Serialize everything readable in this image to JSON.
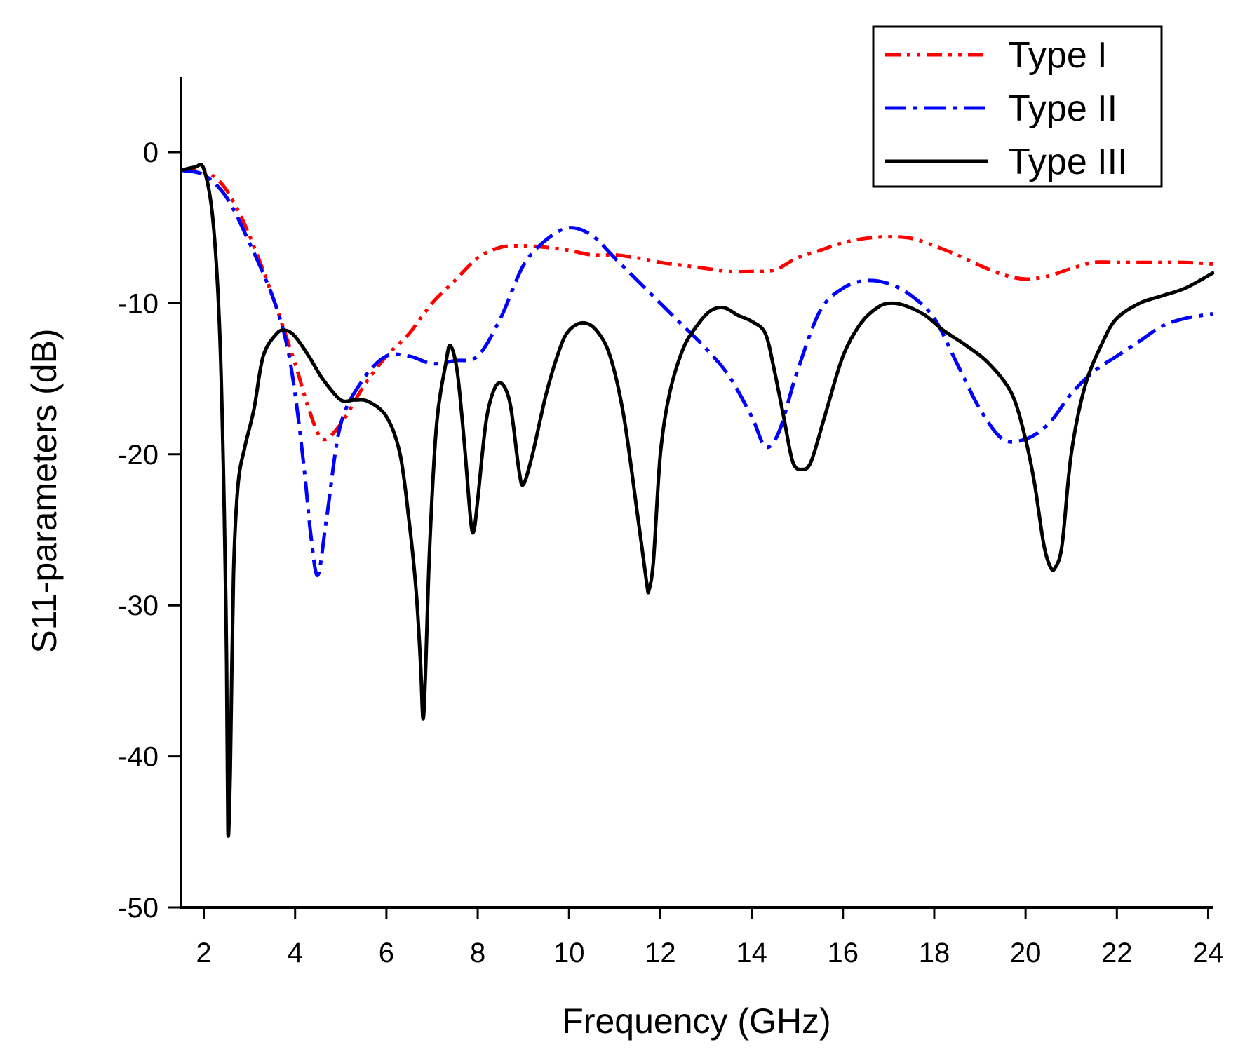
{
  "chart_data": {
    "type": "line",
    "title": "",
    "xlabel": "Frequency (GHz)",
    "ylabel": "S11-parameters (dB)",
    "xlim": [
      1.5,
      24.1
    ],
    "ylim": [
      -50,
      5
    ],
    "x_ticks": [
      2,
      4,
      6,
      8,
      10,
      12,
      14,
      16,
      18,
      20,
      22,
      24
    ],
    "y_ticks": [
      0,
      -10,
      -20,
      -30,
      -40,
      -50
    ],
    "x_tick_labels": [
      "2",
      "4",
      "6",
      "8",
      "10",
      "12",
      "14",
      "16",
      "18",
      "20",
      "22",
      "24"
    ],
    "y_tick_labels": [
      "0",
      "-10",
      "-20",
      "-30",
      "-40",
      "-50"
    ],
    "grid": false,
    "legend_position": "top-right",
    "series": [
      {
        "name": "Type I",
        "color": "#ff0000",
        "dash": "dash-dot-dot",
        "x": [
          1.5,
          2.0,
          2.3,
          2.6,
          3.0,
          3.5,
          4.0,
          4.3,
          4.6,
          5.0,
          5.5,
          6.0,
          6.5,
          7.0,
          7.5,
          8.0,
          8.5,
          9.0,
          9.5,
          10.0,
          10.5,
          11.0,
          11.5,
          12.0,
          12.5,
          13.0,
          13.5,
          14.0,
          14.5,
          15.0,
          15.5,
          16.0,
          16.5,
          17.0,
          17.5,
          18.0,
          18.5,
          19.0,
          19.5,
          20.0,
          20.5,
          21.0,
          21.5,
          22.0,
          22.5,
          23.0,
          23.5,
          24.1
        ],
        "y": [
          -1.2,
          -1.3,
          -1.8,
          -3.0,
          -5.5,
          -9.5,
          -14.0,
          -17.0,
          -19.0,
          -18.0,
          -15.5,
          -13.5,
          -12.0,
          -10.0,
          -8.5,
          -7.0,
          -6.3,
          -6.2,
          -6.3,
          -6.5,
          -6.8,
          -6.8,
          -7.0,
          -7.3,
          -7.5,
          -7.7,
          -7.9,
          -7.9,
          -7.8,
          -7.0,
          -6.5,
          -6.0,
          -5.7,
          -5.6,
          -5.7,
          -6.2,
          -6.8,
          -7.5,
          -8.1,
          -8.4,
          -8.2,
          -7.7,
          -7.3,
          -7.3,
          -7.3,
          -7.3,
          -7.3,
          -7.4
        ]
      },
      {
        "name": "Type II",
        "color": "#0000ff",
        "dash": "dash-dot",
        "x": [
          1.5,
          2.0,
          2.5,
          3.0,
          3.5,
          3.8,
          4.0,
          4.2,
          4.35,
          4.5,
          4.7,
          5.0,
          5.5,
          6.0,
          6.5,
          7.0,
          7.5,
          8.0,
          8.5,
          9.0,
          9.5,
          10.0,
          10.5,
          11.0,
          11.5,
          12.0,
          12.5,
          13.0,
          13.5,
          14.0,
          14.3,
          14.6,
          15.0,
          15.5,
          16.0,
          16.5,
          17.0,
          17.5,
          18.0,
          18.5,
          19.0,
          19.5,
          20.0,
          20.5,
          21.0,
          21.5,
          22.0,
          22.5,
          23.0,
          23.5,
          24.1
        ],
        "y": [
          -1.2,
          -1.5,
          -3.0,
          -6.0,
          -9.5,
          -12.5,
          -16.0,
          -21.0,
          -25.5,
          -28.0,
          -24.0,
          -18.0,
          -15.0,
          -13.5,
          -13.5,
          -14.0,
          -13.8,
          -13.5,
          -11.0,
          -7.5,
          -5.8,
          -5.0,
          -5.5,
          -7.0,
          -8.5,
          -10.0,
          -11.5,
          -13.0,
          -14.8,
          -17.5,
          -19.5,
          -18.5,
          -14.5,
          -10.5,
          -9.0,
          -8.5,
          -8.7,
          -9.5,
          -11.0,
          -14.0,
          -17.0,
          -19.0,
          -19.0,
          -18.0,
          -16.0,
          -14.5,
          -13.5,
          -12.5,
          -11.5,
          -11.0,
          -10.7
        ]
      },
      {
        "name": "Type III",
        "color": "#000000",
        "dash": "solid",
        "x": [
          1.5,
          1.8,
          2.0,
          2.2,
          2.35,
          2.45,
          2.5,
          2.53,
          2.58,
          2.65,
          2.75,
          2.9,
          3.1,
          3.3,
          3.6,
          3.8,
          4.0,
          4.3,
          4.6,
          5.0,
          5.3,
          5.6,
          6.0,
          6.3,
          6.5,
          6.65,
          6.75,
          6.8,
          6.85,
          6.95,
          7.1,
          7.3,
          7.4,
          7.55,
          7.7,
          7.85,
          7.92,
          8.0,
          8.2,
          8.45,
          8.7,
          8.9,
          9.0,
          9.2,
          9.5,
          9.8,
          10.0,
          10.3,
          10.6,
          10.9,
          11.2,
          11.5,
          11.7,
          11.75,
          11.85,
          12.0,
          12.2,
          12.5,
          12.8,
          13.1,
          13.4,
          13.7,
          14.0,
          14.3,
          14.5,
          14.7,
          14.9,
          15.1,
          15.3,
          15.6,
          16.0,
          16.4,
          16.8,
          17.1,
          17.4,
          17.8,
          18.2,
          18.7,
          19.2,
          19.7,
          20.0,
          20.2,
          20.4,
          20.55,
          20.65,
          20.8,
          21.0,
          21.3,
          21.7,
          22.0,
          22.5,
          23.0,
          23.5,
          24.1
        ],
        "y": [
          -1.2,
          -1.0,
          -1.1,
          -4.5,
          -12.0,
          -24.0,
          -34.0,
          -45.0,
          -41.0,
          -28.0,
          -22.0,
          -19.5,
          -17.0,
          -13.5,
          -12.0,
          -11.8,
          -12.2,
          -13.5,
          -15.0,
          -16.4,
          -16.4,
          -16.5,
          -17.5,
          -20.0,
          -24.5,
          -29.0,
          -34.0,
          -37.5,
          -35.0,
          -26.0,
          -18.0,
          -14.0,
          -12.8,
          -14.5,
          -19.0,
          -24.5,
          -25.0,
          -23.0,
          -17.5,
          -15.3,
          -16.5,
          -21.0,
          -22.0,
          -20.0,
          -16.0,
          -13.0,
          -11.8,
          -11.3,
          -11.8,
          -13.5,
          -17.5,
          -24.0,
          -28.5,
          -29.0,
          -27.0,
          -20.0,
          -16.0,
          -13.0,
          -11.5,
          -10.5,
          -10.3,
          -10.8,
          -11.2,
          -12.0,
          -14.5,
          -17.5,
          -20.5,
          -21.0,
          -20.5,
          -17.5,
          -13.5,
          -11.3,
          -10.2,
          -10.0,
          -10.2,
          -10.8,
          -11.8,
          -12.8,
          -14.0,
          -16.0,
          -19.0,
          -22.0,
          -26.0,
          -27.5,
          -27.5,
          -26.0,
          -20.0,
          -15.5,
          -12.5,
          -11.0,
          -10.0,
          -9.5,
          -9.0,
          -8.0
        ]
      }
    ]
  }
}
